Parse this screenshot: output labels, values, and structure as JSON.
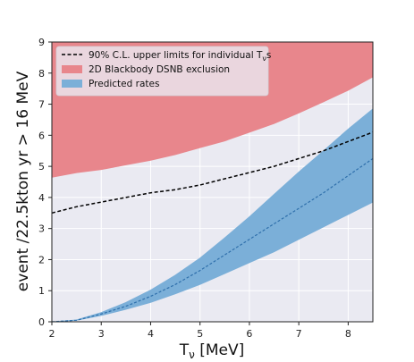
{
  "chart_data": {
    "type": "area",
    "xlabel_main": "T",
    "xlabel_sub": "ν",
    "xlabel_unit": " [MeV]",
    "ylabel": "event /22.5kton yr > 16 MeV",
    "xlim": [
      2,
      8.5
    ],
    "ylim": [
      0,
      9
    ],
    "xticks": [
      "2",
      "3",
      "4",
      "5",
      "6",
      "7",
      "8"
    ],
    "yticks": [
      "0",
      "1",
      "2",
      "3",
      "4",
      "5",
      "6",
      "7",
      "8",
      "9"
    ],
    "grid": true,
    "legend_position": "top-left",
    "series": [
      {
        "name_prefix": "90% C.L. upper limits for individual T",
        "name_sub": "ν",
        "name_suffix": "s",
        "style": "black-dashed-line",
        "color": "#000000",
        "x": [
          2,
          2.5,
          3,
          3.5,
          4,
          4.5,
          5,
          5.5,
          6,
          6.5,
          7,
          7.5,
          8,
          8.5
        ],
        "y": [
          3.5,
          3.7,
          3.85,
          4.0,
          4.15,
          4.25,
          4.4,
          4.6,
          4.8,
          5.0,
          5.25,
          5.5,
          5.8,
          6.1
        ]
      },
      {
        "name": "2D Blackbody DSNB exclusion",
        "style": "filled-region-to-top",
        "color": "#e8868c",
        "x": [
          2,
          2.5,
          3,
          3.5,
          4,
          4.5,
          5,
          5.5,
          6,
          6.5,
          7,
          7.5,
          8,
          8.5
        ],
        "lower": [
          4.65,
          4.8,
          4.9,
          5.05,
          5.2,
          5.38,
          5.6,
          5.82,
          6.1,
          6.38,
          6.72,
          7.08,
          7.45,
          7.88
        ],
        "upper": [
          9,
          9,
          9,
          9,
          9,
          9,
          9,
          9,
          9,
          9,
          9,
          9,
          9,
          9
        ]
      },
      {
        "name": "Predicted rates",
        "style": "band-with-dashed-center",
        "color": "#7bafd8",
        "center_color": "#2e6fab",
        "x": [
          2,
          2.5,
          3,
          3.5,
          4,
          4.5,
          5,
          5.5,
          6,
          6.5,
          7,
          7.5,
          8,
          8.5
        ],
        "lower": [
          0,
          0.05,
          0.2,
          0.4,
          0.62,
          0.9,
          1.2,
          1.55,
          1.9,
          2.25,
          2.65,
          3.05,
          3.45,
          3.85
        ],
        "center": [
          0,
          0.05,
          0.25,
          0.5,
          0.82,
          1.2,
          1.65,
          2.15,
          2.65,
          3.15,
          3.65,
          4.15,
          4.7,
          5.25
        ],
        "upper": [
          0,
          0.06,
          0.3,
          0.62,
          1.02,
          1.5,
          2.05,
          2.7,
          3.38,
          4.1,
          4.82,
          5.5,
          6.2,
          6.85
        ]
      }
    ]
  }
}
